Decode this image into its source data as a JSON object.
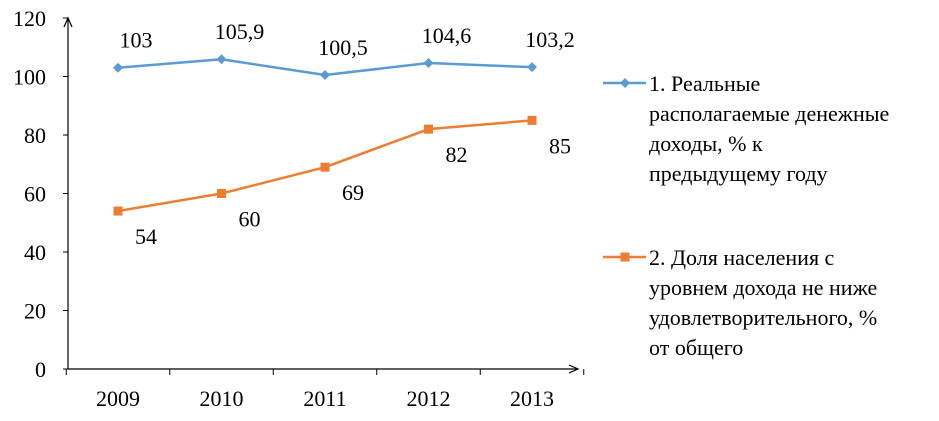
{
  "chart_data": {
    "type": "line",
    "categories": [
      "2009",
      "2010",
      "2011",
      "2012",
      "2013"
    ],
    "ylim": [
      0,
      120
    ],
    "yticks": [
      "0",
      "20",
      "40",
      "60",
      "80",
      "100",
      "120"
    ],
    "grid": false,
    "legend_position": "right",
    "series": [
      {
        "name": "1. Реальные располагаемые денежные доходы, % к предыдущему году",
        "legend_lines": [
          "1. Реальные",
          "располагаемые денежные",
          "доходы, % к",
          "предыдущему году"
        ],
        "values": [
          103,
          105.9,
          100.5,
          104.6,
          103.2
        ],
        "labels": [
          "103",
          "105,9",
          "100,5",
          "104,6",
          "103,2"
        ],
        "label_position": "above",
        "color": "#5B9BD5",
        "marker": "diamond"
      },
      {
        "name": "2. Доля населения с уровнем дохода не ниже удовлетворительного, % от общего",
        "legend_lines": [
          "2. Доля населения с",
          "уровнем дохода не ниже",
          "удовлетворительного, %",
          "от общего"
        ],
        "values": [
          54,
          60,
          69,
          82,
          85
        ],
        "labels": [
          "54",
          "60",
          "69",
          "82",
          "85"
        ],
        "label_position": "below-right",
        "color": "#ED7D31",
        "marker": "square"
      }
    ]
  }
}
